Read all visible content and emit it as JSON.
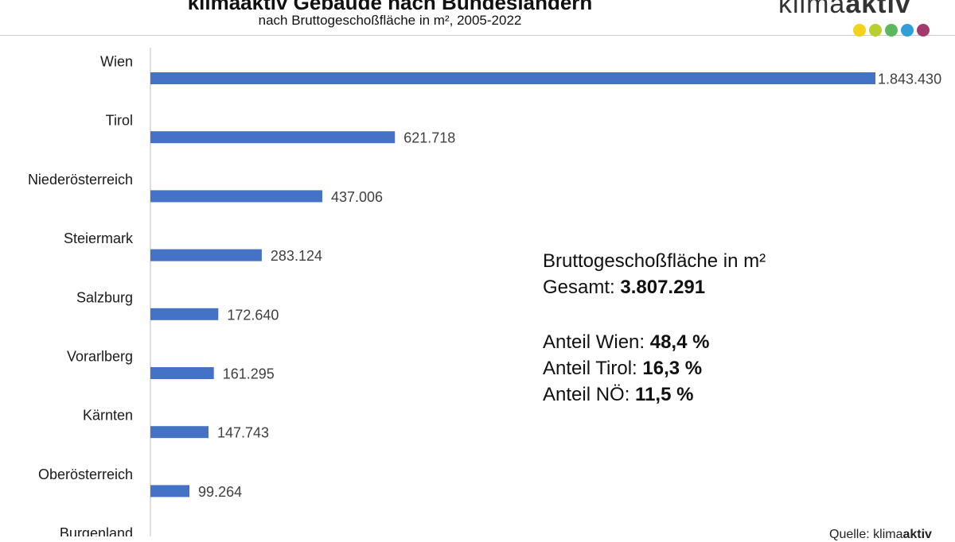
{
  "chart_data": {
    "type": "bar",
    "orientation": "horizontal",
    "title": "klimaaktiv Gebäude nach Bundesländern",
    "subtitle": "nach Bruttogeschoßfläche in m², 2005-2022",
    "categories": [
      "Wien",
      "Tirol",
      "Niederösterreich",
      "Steiermark",
      "Salzburg",
      "Vorarlberg",
      "Kärnten",
      "Oberösterreich",
      "Burgenland"
    ],
    "values": [
      1843430,
      621718,
      437006,
      283124,
      172640,
      161295,
      147743,
      99264,
      null
    ],
    "value_labels": [
      "1.843.430",
      "621.718",
      "437.006",
      "283.124",
      "172.640",
      "161.295",
      "147.743",
      "99.264",
      ""
    ],
    "xlim": [
      0,
      1843430
    ],
    "bar_color": "#4472c4",
    "grid": false,
    "legend": "none"
  },
  "logo": {
    "text_light": "klima",
    "text_bold": "aktiv",
    "dot_colors": [
      "#f2d21b",
      "#b7cf2f",
      "#5cb85c",
      "#2e9fd8",
      "#a23a6e"
    ]
  },
  "info": {
    "line1_label": "Bruttogeschoßfläche in m²",
    "line2_label": "Gesamt: ",
    "line2_value": "3.807.291",
    "share1_label": "Anteil Wien: ",
    "share1_value": "48,4 %",
    "share2_label": "Anteil Tirol: ",
    "share2_value": "16,3 %",
    "share3_label": "Anteil NÖ: ",
    "share3_value": "11,5 %"
  },
  "source": {
    "prefix": "Quelle: klima",
    "bold": "aktiv"
  }
}
